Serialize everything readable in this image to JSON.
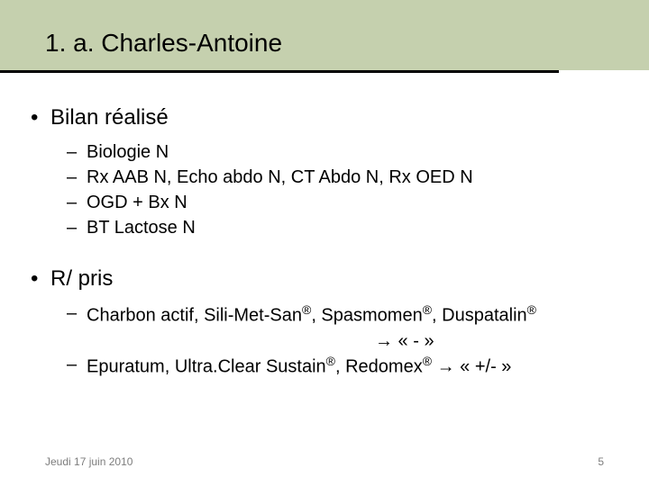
{
  "colors": {
    "header_band": "#c5d0ae",
    "rule": "#000000",
    "text": "#000000",
    "footer_text": "#7d7d7d",
    "background": "#ffffff"
  },
  "typography": {
    "title_fontsize": 28,
    "l1_fontsize": 24,
    "l2_fontsize": 20,
    "footer_fontsize": 12,
    "font_family": "Arial"
  },
  "title": "1. a. Charles-Antoine",
  "sections": [
    {
      "heading": "Bilan réalisé",
      "items": [
        "Biologie N",
        "Rx AAB N, Echo abdo N, CT Abdo N, Rx OED N",
        "OGD + Bx N",
        "BT Lactose N"
      ]
    },
    {
      "heading": "R/ pris",
      "items_html": [
        "Charbon actif, Sili-Met-San<span class=\"reg\">®</span>, Spasmomen<span class=\"reg\">®</span>, Duspatalin<span class=\"reg\">®</span>",
        "Epuratum, Ultra.Clear Sustain<span class=\"reg\">®</span>, Redomex<span class=\"reg\">®</span> → « +/- »"
      ],
      "arrow_line": "→ « - »"
    }
  ],
  "footer": {
    "date": "Jeudi 17 juin 2010",
    "page": "5"
  }
}
